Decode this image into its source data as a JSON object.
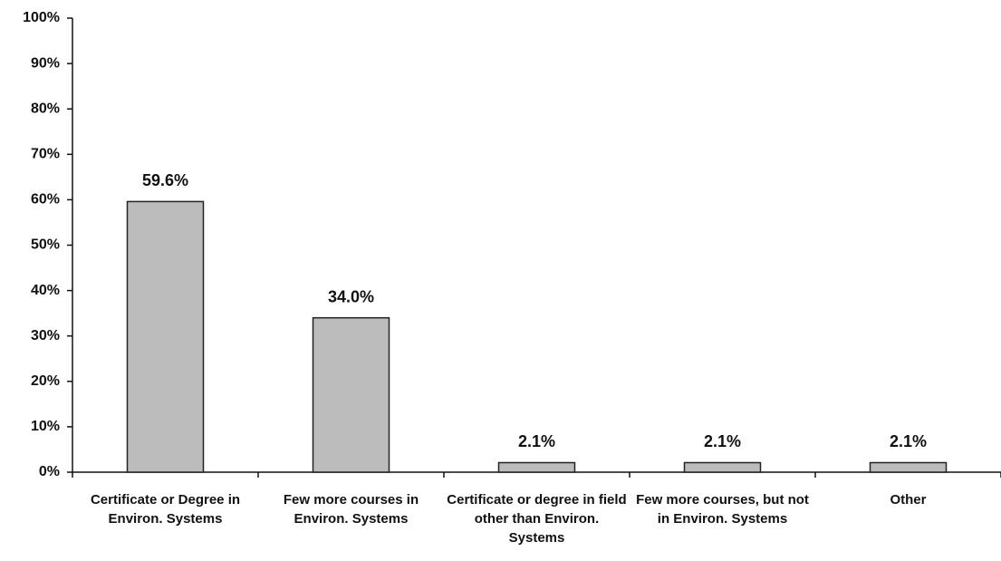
{
  "chart_data": {
    "type": "bar",
    "categories": [
      "Certificate or Degree in Environ. Systems",
      "Few more courses in Environ. Systems",
      "Certificate or degree in field other than Environ. Systems",
      "Few more courses, but not in Environ. Systems",
      "Other"
    ],
    "values": [
      59.6,
      34.0,
      2.1,
      2.1,
      2.1
    ],
    "value_labels": [
      "59.6%",
      "34.0%",
      "2.1%",
      "2.1%",
      "2.1%"
    ],
    "color": "#bcbcbc",
    "ylim": [
      0,
      100
    ],
    "yticks": [
      {
        "value": 0,
        "label": "0%"
      },
      {
        "value": 10,
        "label": "10%"
      },
      {
        "value": 20,
        "label": "20%"
      },
      {
        "value": 30,
        "label": "30%"
      },
      {
        "value": 40,
        "label": "40%"
      },
      {
        "value": 50,
        "label": "50%"
      },
      {
        "value": 60,
        "label": "60%"
      },
      {
        "value": 70,
        "label": "70%"
      },
      {
        "value": 80,
        "label": "80%"
      },
      {
        "value": 90,
        "label": "90%"
      },
      {
        "value": 100,
        "label": "100%"
      }
    ],
    "grid": false
  }
}
